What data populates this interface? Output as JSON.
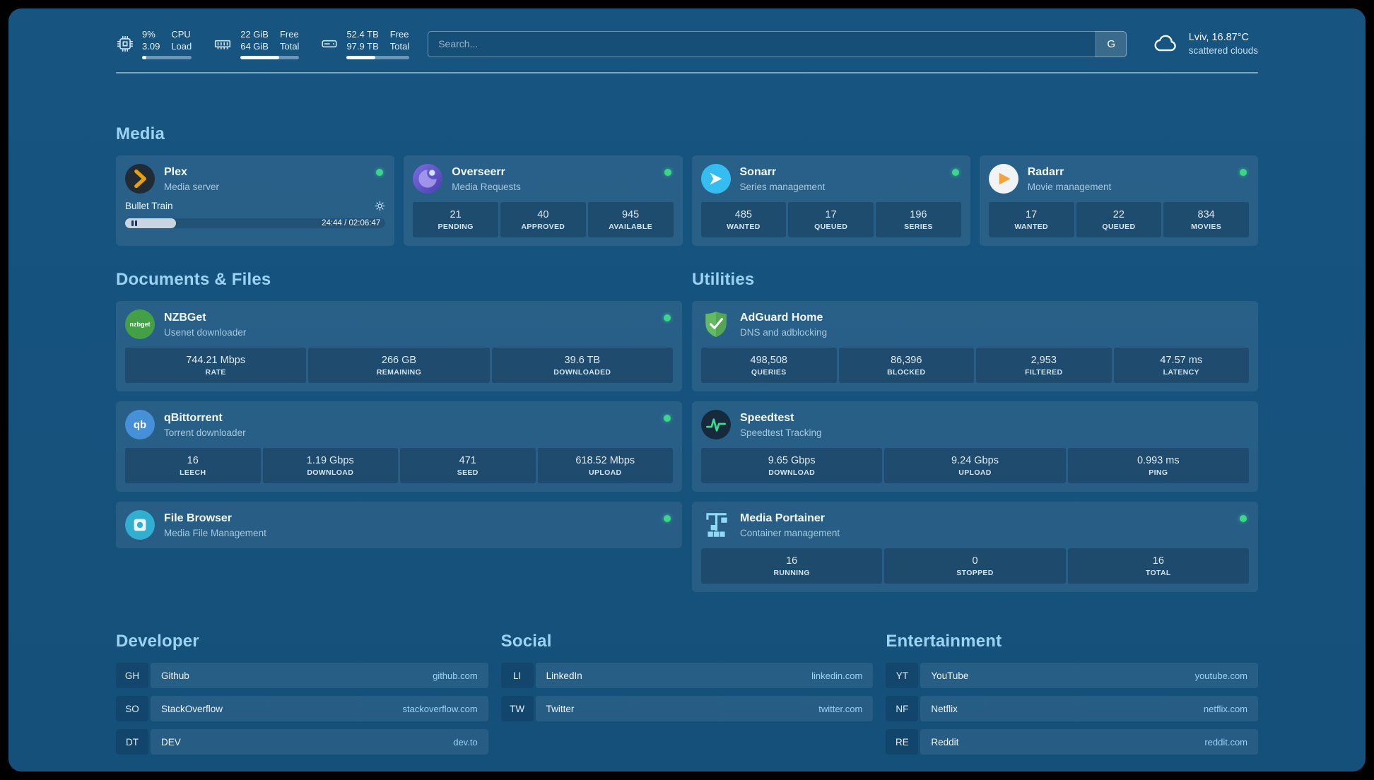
{
  "topbar": {
    "resources": [
      {
        "id": "cpu",
        "value_top": "9%",
        "value_bottom": "3.09",
        "label_top": "CPU",
        "label_bottom": "Load",
        "percent": 9
      },
      {
        "id": "memory",
        "value_top": "22 GiB",
        "value_bottom": "64 GiB",
        "label_top": "Free",
        "label_bottom": "Total",
        "percent": 66
      },
      {
        "id": "disk",
        "value_top": "52.4 TB",
        "value_bottom": "97.9 TB",
        "label_top": "Free",
        "label_bottom": "Total",
        "percent": 46
      }
    ],
    "search": {
      "placeholder": "Search...",
      "provider_button": "G"
    },
    "weather": {
      "location": "Lviv, 16.87°C",
      "condition": "scattered clouds"
    }
  },
  "sections": {
    "media": {
      "title": "Media",
      "plex": {
        "name": "Plex",
        "subtitle": "Media server",
        "status": "online",
        "now_playing": "Bullet Train",
        "time": "24:44 / 02:06:47",
        "progress_percent": 19.5
      },
      "overseerr": {
        "name": "Overseerr",
        "subtitle": "Media Requests",
        "status": "online",
        "stats": [
          {
            "value": "21",
            "label": "PENDING"
          },
          {
            "value": "40",
            "label": "APPROVED"
          },
          {
            "value": "945",
            "label": "AVAILABLE"
          }
        ]
      },
      "sonarr": {
        "name": "Sonarr",
        "subtitle": "Series management",
        "status": "online",
        "stats": [
          {
            "value": "485",
            "label": "WANTED"
          },
          {
            "value": "17",
            "label": "QUEUED"
          },
          {
            "value": "196",
            "label": "SERIES"
          }
        ]
      },
      "radarr": {
        "name": "Radarr",
        "subtitle": "Movie management",
        "status": "online",
        "stats": [
          {
            "value": "17",
            "label": "WANTED"
          },
          {
            "value": "22",
            "label": "QUEUED"
          },
          {
            "value": "834",
            "label": "MOVIES"
          }
        ]
      }
    },
    "documents": {
      "title": "Documents & Files",
      "nzbget": {
        "name": "NZBGet",
        "subtitle": "Usenet downloader",
        "status": "online",
        "stats": [
          {
            "value": "744.21 Mbps",
            "label": "RATE"
          },
          {
            "value": "266 GB",
            "label": "REMAINING"
          },
          {
            "value": "39.6 TB",
            "label": "DOWNLOADED"
          }
        ]
      },
      "qbittorrent": {
        "name": "qBittorrent",
        "subtitle": "Torrent downloader",
        "status": "online",
        "stats": [
          {
            "value": "16",
            "label": "LEECH"
          },
          {
            "value": "1.19 Gbps",
            "label": "DOWNLOAD"
          },
          {
            "value": "471",
            "label": "SEED"
          },
          {
            "value": "618.52 Mbps",
            "label": "UPLOAD"
          }
        ]
      },
      "filebrowser": {
        "name": "File Browser",
        "subtitle": "Media File Management",
        "status": "online"
      }
    },
    "utilities": {
      "title": "Utilities",
      "adguard": {
        "name": "AdGuard Home",
        "subtitle": "DNS and adblocking",
        "stats": [
          {
            "value": "498,508",
            "label": "QUERIES"
          },
          {
            "value": "86,396",
            "label": "BLOCKED"
          },
          {
            "value": "2,953",
            "label": "FILTERED"
          },
          {
            "value": "47.57 ms",
            "label": "LATENCY"
          }
        ]
      },
      "speedtest": {
        "name": "Speedtest",
        "subtitle": "Speedtest Tracking",
        "stats": [
          {
            "value": "9.65 Gbps",
            "label": "DOWNLOAD"
          },
          {
            "value": "9.24 Gbps",
            "label": "UPLOAD"
          },
          {
            "value": "0.993 ms",
            "label": "PING"
          }
        ]
      },
      "portainer": {
        "name": "Media Portainer",
        "subtitle": "Container management",
        "status": "online",
        "stats": [
          {
            "value": "16",
            "label": "RUNNING"
          },
          {
            "value": "0",
            "label": "STOPPED"
          },
          {
            "value": "16",
            "label": "TOTAL"
          }
        ]
      }
    }
  },
  "bookmarks": {
    "developer": {
      "title": "Developer",
      "items": [
        {
          "abbr": "GH",
          "name": "Github",
          "url": "github.com"
        },
        {
          "abbr": "SO",
          "name": "StackOverflow",
          "url": "stackoverflow.com"
        },
        {
          "abbr": "DT",
          "name": "DEV",
          "url": "dev.to"
        }
      ]
    },
    "social": {
      "title": "Social",
      "items": [
        {
          "abbr": "LI",
          "name": "LinkedIn",
          "url": "linkedin.com"
        },
        {
          "abbr": "TW",
          "name": "Twitter",
          "url": "twitter.com"
        }
      ]
    },
    "entertainment": {
      "title": "Entertainment",
      "items": [
        {
          "abbr": "YT",
          "name": "YouTube",
          "url": "youtube.com"
        },
        {
          "abbr": "NF",
          "name": "Netflix",
          "url": "netflix.com"
        },
        {
          "abbr": "RE",
          "name": "Reddit",
          "url": "reddit.com"
        }
      ]
    }
  },
  "icons": {
    "topbar": [
      "cpu-icon",
      "memory-icon",
      "disk-icon",
      "cloud-icon"
    ],
    "services": {
      "plex": "plex-icon",
      "overseerr": "overseerr-icon",
      "sonarr": "sonarr-icon",
      "radarr": "radarr-icon",
      "nzbget": "nzbget-icon",
      "qbittorrent": "qbittorrent-icon",
      "filebrowser": "filebrowser-icon",
      "adguard": "adguard-shield-icon",
      "speedtest": "speedtest-pulse-icon",
      "portainer": "portainer-crane-icon"
    },
    "misc": [
      "gear-icon",
      "pause-icon",
      "status-dot"
    ]
  },
  "colors": {
    "background": "#16527d",
    "accent": "#9cd2f5",
    "status_online": "#3bd68b",
    "plex_orange": "#e5a00d",
    "speedtest_green": "#41d98c"
  }
}
